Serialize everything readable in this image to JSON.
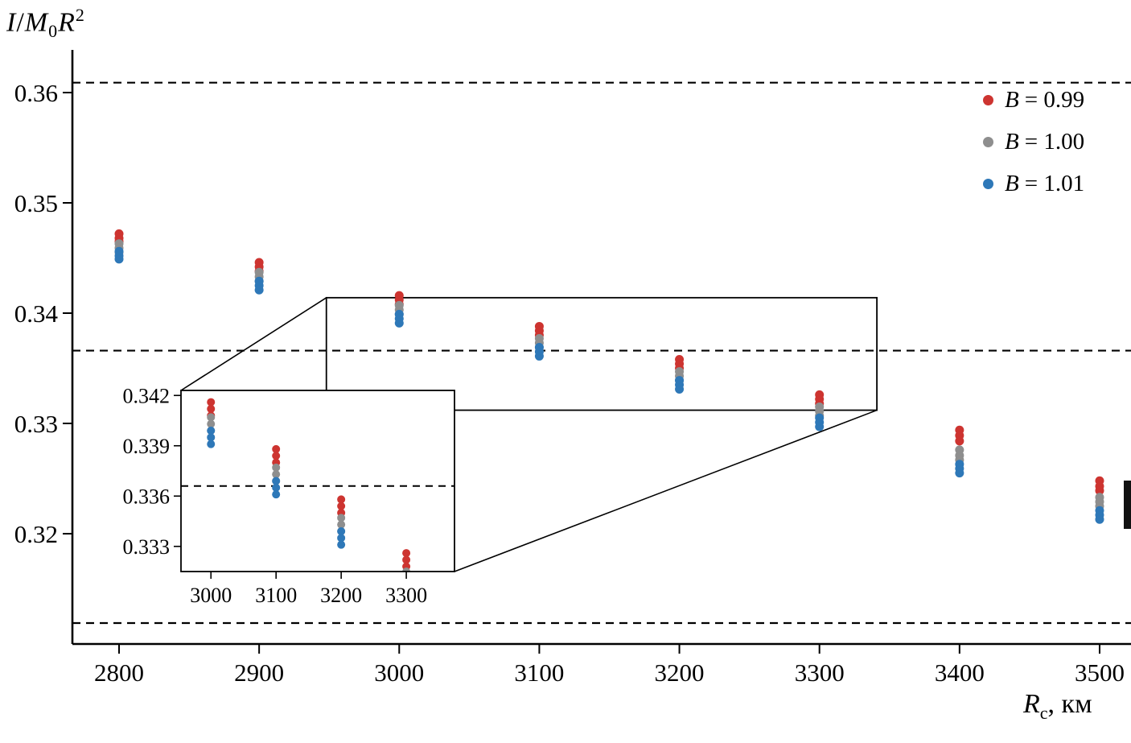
{
  "labels": {
    "ylabel": {
      "i": "I",
      "slash": "/",
      "m": "M",
      "sub": "0",
      "r": "R",
      "sup": "2"
    },
    "xlabel": {
      "r": "R",
      "sub": "c",
      "rest": ", км"
    }
  },
  "legend": {
    "items": [
      {
        "var": "B",
        "rest": "= 0.99"
      },
      {
        "var": "B",
        "rest": "= 1.00"
      },
      {
        "var": "B",
        "rest": "= 1.01"
      }
    ]
  },
  "chart_data": {
    "type": "scatter",
    "title": "",
    "xlabel": "Rc, км",
    "ylabel": "I/M0R2",
    "xlim": [
      2766,
      3522
    ],
    "ylim": [
      0.31,
      0.364
    ],
    "x_ticks": [
      2800,
      2900,
      3000,
      3100,
      3200,
      3300,
      3400,
      3500
    ],
    "y_ticks": [
      0.32,
      0.33,
      0.34,
      0.35,
      0.36
    ],
    "y_tick_labels": [
      "0.32",
      "0.33",
      "0.34",
      "0.35",
      "0.36"
    ],
    "grid": false,
    "legend_position": "top-right",
    "dashed_hlines": [
      0.3609,
      0.3366,
      0.3119
    ],
    "zoom_rect": {
      "x": [
        2948,
        3341
      ],
      "y": [
        0.3312,
        0.3414
      ]
    },
    "series": [
      {
        "name": "B = 0.99",
        "color": "#cd3430",
        "clusters": [
          {
            "x": 2800,
            "ys": [
              0.3472,
              0.3468,
              0.3465
            ]
          },
          {
            "x": 2900,
            "ys": [
              0.3446,
              0.3442,
              0.3438
            ]
          },
          {
            "x": 3000,
            "ys": [
              0.3416,
              0.3412,
              0.3408
            ]
          },
          {
            "x": 3100,
            "ys": [
              0.3388,
              0.3384,
              0.338
            ]
          },
          {
            "x": 3200,
            "ys": [
              0.3358,
              0.3354,
              0.335
            ]
          },
          {
            "x": 3300,
            "ys": [
              0.3326,
              0.3322,
              0.3318
            ]
          },
          {
            "x": 3400,
            "ys": [
              0.3294,
              0.3289,
              0.3284
            ]
          },
          {
            "x": 3500,
            "ys": [
              0.3248,
              0.3243,
              0.3239
            ]
          }
        ]
      },
      {
        "name": "B = 1.00",
        "color": "#8e8e8e",
        "clusters": [
          {
            "x": 2800,
            "ys": [
              0.3463,
              0.3459,
              0.3455
            ]
          },
          {
            "x": 2900,
            "ys": [
              0.3437,
              0.3433,
              0.3429
            ]
          },
          {
            "x": 3000,
            "ys": [
              0.3407,
              0.3403,
              0.3399
            ]
          },
          {
            "x": 3100,
            "ys": [
              0.3377,
              0.3373,
              0.3369
            ]
          },
          {
            "x": 3200,
            "ys": [
              0.3347,
              0.3343,
              0.3339
            ]
          },
          {
            "x": 3300,
            "ys": [
              0.3315,
              0.3311,
              0.3307
            ]
          },
          {
            "x": 3400,
            "ys": [
              0.3276,
              0.3271,
              0.3267
            ]
          },
          {
            "x": 3500,
            "ys": [
              0.3233,
              0.3229,
              0.3225
            ]
          }
        ]
      },
      {
        "name": "B = 1.01",
        "color": "#2e78b8",
        "clusters": [
          {
            "x": 2800,
            "ys": [
              0.3456,
              0.3452,
              0.3449
            ]
          },
          {
            "x": 2900,
            "ys": [
              0.3429,
              0.3425,
              0.3421
            ]
          },
          {
            "x": 3000,
            "ys": [
              0.3399,
              0.3395,
              0.3391
            ]
          },
          {
            "x": 3100,
            "ys": [
              0.3369,
              0.3365,
              0.3361
            ]
          },
          {
            "x": 3200,
            "ys": [
              0.3339,
              0.3335,
              0.3331
            ]
          },
          {
            "x": 3300,
            "ys": [
              0.3305,
              0.3301,
              0.3297
            ]
          },
          {
            "x": 3400,
            "ys": [
              0.3263,
              0.3259,
              0.3255
            ]
          },
          {
            "x": 3500,
            "ys": [
              0.3221,
              0.3217,
              0.3213
            ]
          }
        ]
      }
    ],
    "inset": {
      "xlim": [
        2954,
        3374
      ],
      "ylim": [
        0.3315,
        0.3423
      ],
      "x_ticks": [
        3000,
        3100,
        3200,
        3300
      ],
      "y_ticks": [
        0.333,
        0.336,
        0.339,
        0.342
      ],
      "y_tick_labels": [
        "0.333",
        "0.336",
        "0.339",
        "0.342"
      ],
      "dashed_hline": 0.3366
    }
  }
}
